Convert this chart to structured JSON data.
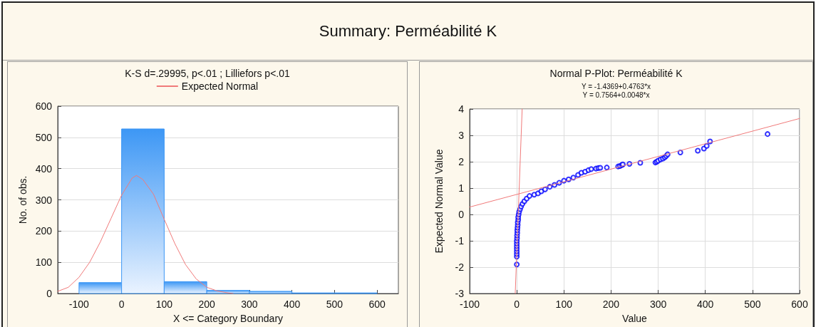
{
  "chart_data": [
    {
      "type": "histogram",
      "title": "Summary: Perméabilité K",
      "subtitle": "K-S d=.29995, p<.01 ; Lilliefors p<.01",
      "xlabel": "X <= Category Boundary",
      "ylabel": "No. of obs.",
      "bins": [
        -100,
        0,
        100,
        200,
        300,
        400,
        500,
        600
      ],
      "values": [
        35,
        527,
        38,
        10,
        7,
        2,
        2
      ],
      "color": "#3d97f5",
      "series": [
        {
          "name": "Expected Normal",
          "type": "line",
          "color": "#f07a7a",
          "x": [
            -150,
            -125,
            -100,
            -75,
            -50,
            -25,
            0,
            25,
            35,
            50,
            75,
            100,
            125,
            150,
            175,
            200,
            225,
            250,
            262
          ],
          "values": [
            7,
            20,
            52,
            100,
            165,
            240,
            315,
            370,
            378,
            365,
            318,
            238,
            160,
            93,
            47,
            20,
            8,
            2,
            0
          ]
        }
      ],
      "xlim": [
        -150,
        650
      ],
      "xticks": [
        -100,
        0,
        100,
        200,
        300,
        400,
        500,
        600
      ],
      "ylim": [
        0,
        600
      ],
      "yticks": [
        0,
        100,
        200,
        300,
        400,
        500,
        600
      ],
      "grid": "y",
      "legend": "top"
    },
    {
      "type": "scatter",
      "title": "Normal P-Plot: Perméabilité K",
      "xlabel": "Value",
      "ylabel": "Expected Normal Value",
      "annotations": [
        "Y = -1.4369+0.4763*x",
        "Y = 0.7564+0.0048*x"
      ],
      "series": [
        {
          "type": "scatter",
          "color": "#0000ff",
          "marker": "circle",
          "x": [
            0,
            0,
            0,
            0,
            0,
            0,
            0,
            0,
            0.5,
            0.5,
            1,
            1,
            1.5,
            2,
            2,
            3,
            3,
            4,
            5,
            7,
            9,
            12,
            16,
            21,
            27,
            37,
            45,
            52,
            60,
            70,
            80,
            90,
            100,
            110,
            120,
            130,
            137,
            145,
            152,
            158,
            168,
            173,
            177,
            191,
            215,
            219,
            223,
            225,
            239,
            262,
            294,
            297,
            300,
            305,
            310,
            314,
            317,
            320,
            347,
            384,
            397,
            403,
            410,
            532
          ],
          "values": [
            -1.9,
            -1.6,
            -1.5,
            -1.4,
            -1.3,
            -1.2,
            -1.1,
            -1.0,
            -0.9,
            -0.8,
            -0.7,
            -0.6,
            -0.5,
            -0.4,
            -0.3,
            -0.2,
            -0.1,
            0,
            0.1,
            0.2,
            0.3,
            0.4,
            0.5,
            0.6,
            0.7,
            0.75,
            0.8,
            0.88,
            0.95,
            1.05,
            1.12,
            1.2,
            1.28,
            1.33,
            1.4,
            1.5,
            1.58,
            1.62,
            1.68,
            1.72,
            1.74,
            1.76,
            1.77,
            1.78,
            1.82,
            1.84,
            1.88,
            1.9,
            1.92,
            1.96,
            1.97,
            2.0,
            2.04,
            2.09,
            2.12,
            2.17,
            2.22,
            2.28,
            2.35,
            2.42,
            2.5,
            2.6,
            2.77,
            3.05
          ]
        },
        {
          "type": "line",
          "color": "#f07a7a",
          "x": [
            -3.28,
            11.42
          ],
          "values": [
            -3,
            4
          ]
        },
        {
          "type": "line",
          "color": "#f07a7a",
          "x": [
            -100,
            600
          ],
          "values": [
            0.28,
            3.64
          ]
        }
      ],
      "xlim": [
        -100,
        600
      ],
      "xticks": [
        -100,
        0,
        100,
        200,
        300,
        400,
        500,
        600
      ],
      "ylim": [
        -3,
        4
      ],
      "yticks": [
        -3,
        -2,
        -1,
        0,
        1,
        2,
        3,
        4
      ],
      "grid": true
    }
  ]
}
